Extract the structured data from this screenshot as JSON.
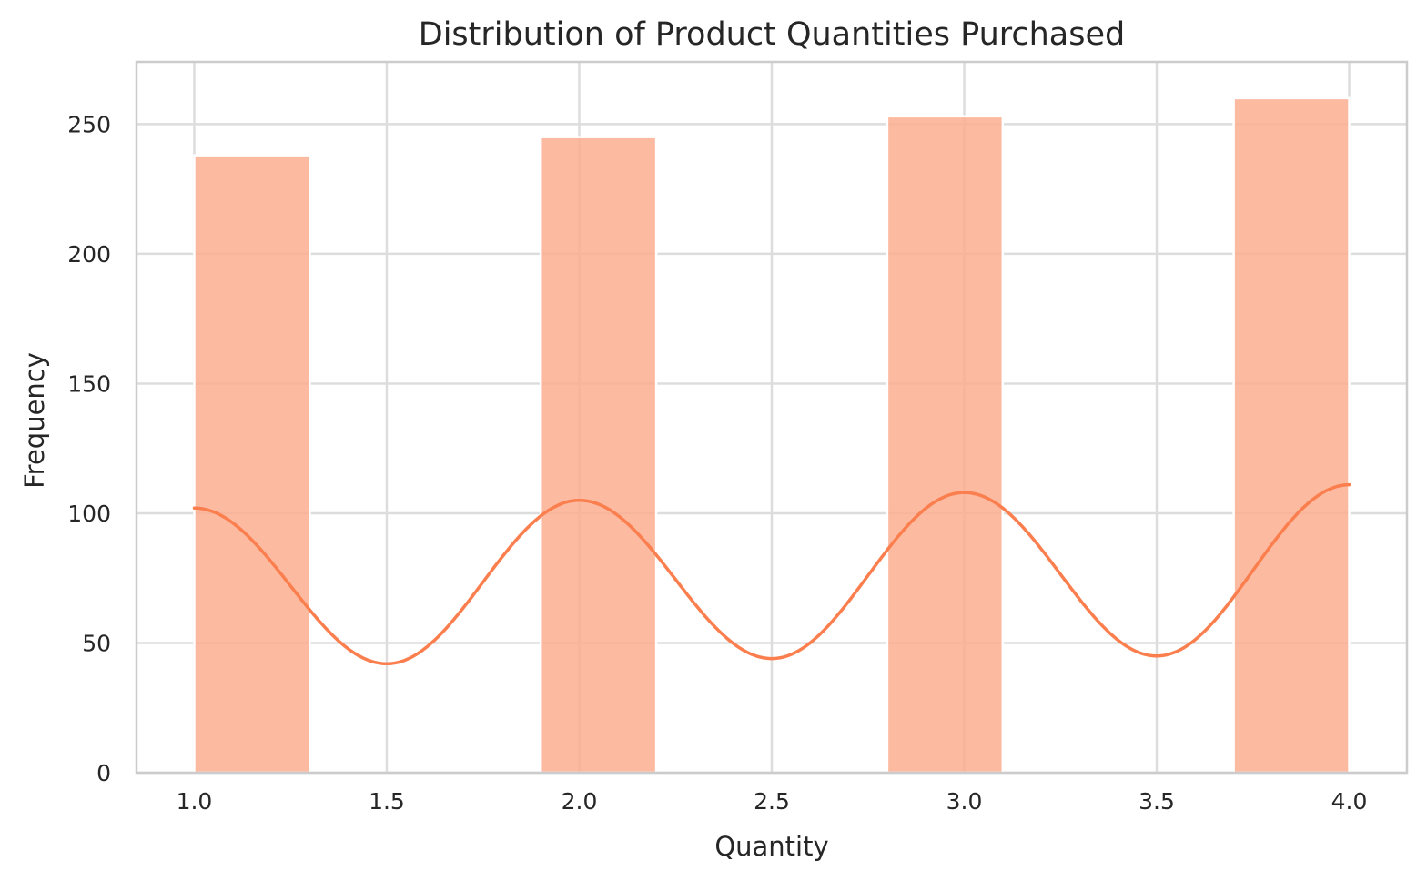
{
  "chart_data": {
    "type": "bar",
    "title": "Distribution of Product Quantities Purchased",
    "xlabel": "Quantity",
    "ylabel": "Frequency",
    "xlim": [
      0.85,
      4.15
    ],
    "ylim": [
      0,
      274
    ],
    "x_ticks": [
      "1.0",
      "1.5",
      "2.0",
      "2.5",
      "3.0",
      "3.5",
      "4.0"
    ],
    "y_ticks": [
      "0",
      "50",
      "100",
      "150",
      "200",
      "250"
    ],
    "grid": true,
    "bin_edges": [
      1.0,
      1.3,
      1.6,
      1.9,
      2.2,
      2.5,
      2.8,
      3.1,
      3.4,
      3.7,
      4.0
    ],
    "bins": [
      {
        "x_start": 1.0,
        "x_end": 1.3,
        "value": 238
      },
      {
        "x_start": 1.3,
        "x_end": 1.6,
        "value": 0
      },
      {
        "x_start": 1.6,
        "x_end": 1.9,
        "value": 0
      },
      {
        "x_start": 1.9,
        "x_end": 2.2,
        "value": 245
      },
      {
        "x_start": 2.2,
        "x_end": 2.5,
        "value": 0
      },
      {
        "x_start": 2.5,
        "x_end": 2.8,
        "value": 0
      },
      {
        "x_start": 2.8,
        "x_end": 3.1,
        "value": 253
      },
      {
        "x_start": 3.1,
        "x_end": 3.4,
        "value": 0
      },
      {
        "x_start": 3.4,
        "x_end": 3.7,
        "value": 0
      },
      {
        "x_start": 3.7,
        "x_end": 4.0,
        "value": 260
      }
    ],
    "kde": {
      "x": [
        1.0,
        1.5,
        2.0,
        2.5,
        3.0,
        3.5,
        4.0
      ],
      "y": [
        102,
        42,
        105,
        44,
        108,
        45,
        111
      ]
    },
    "colors": {
      "bar": "#fcae91",
      "kde_line": "#fb7f4e",
      "grid": "#dddddd",
      "spine": "#cccccc",
      "text": "#262626"
    }
  }
}
